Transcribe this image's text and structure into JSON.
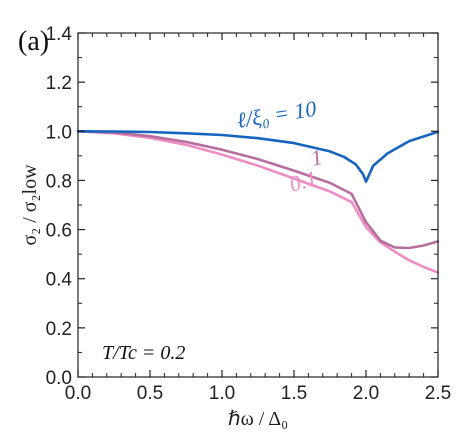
{
  "chart_data": {
    "type": "line",
    "panel_label": "(a)",
    "xlabel": "ℏω / Δ₀",
    "ylabel": "σ₂ / σ₂low",
    "xlim": [
      0.0,
      2.5
    ],
    "ylim": [
      0.0,
      1.4
    ],
    "x_ticks": [
      "0.0",
      "0.5",
      "1.0",
      "1.5",
      "2.0",
      "2.5"
    ],
    "y_ticks": [
      "0.0",
      "0.2",
      "0.4",
      "0.6",
      "0.8",
      "1.0",
      "1.2",
      "1.4"
    ],
    "annotation": "T/Tc = 0.2",
    "grid": false,
    "series": [
      {
        "name": "ℓ/ξ₀ = 10",
        "color": "#1565c0",
        "x": [
          0.0,
          0.25,
          0.5,
          0.75,
          1.0,
          1.25,
          1.5,
          1.75,
          1.85,
          1.93,
          1.98,
          2.0,
          2.05,
          2.15,
          2.3,
          2.5
        ],
        "y": [
          1.0,
          0.999,
          0.997,
          0.992,
          0.985,
          0.972,
          0.952,
          0.918,
          0.895,
          0.865,
          0.825,
          0.795,
          0.86,
          0.91,
          0.96,
          0.998
        ]
      },
      {
        "name": "1",
        "color": "#b76e9e",
        "x": [
          0.0,
          0.25,
          0.5,
          0.75,
          1.0,
          1.25,
          1.5,
          1.75,
          1.9,
          2.0,
          2.1,
          2.2,
          2.3,
          2.4,
          2.5
        ],
        "y": [
          1.0,
          0.995,
          0.98,
          0.957,
          0.925,
          0.887,
          0.84,
          0.79,
          0.745,
          0.63,
          0.555,
          0.527,
          0.525,
          0.535,
          0.552
        ]
      },
      {
        "name": "0.1",
        "color": "#ee8cc3",
        "x": [
          0.0,
          0.25,
          0.5,
          0.75,
          1.0,
          1.25,
          1.5,
          1.75,
          1.9,
          2.0,
          2.1,
          2.2,
          2.3,
          2.4,
          2.5
        ],
        "y": [
          1.0,
          0.992,
          0.973,
          0.945,
          0.905,
          0.86,
          0.808,
          0.755,
          0.712,
          0.61,
          0.548,
          0.51,
          0.475,
          0.448,
          0.425
        ]
      }
    ]
  }
}
